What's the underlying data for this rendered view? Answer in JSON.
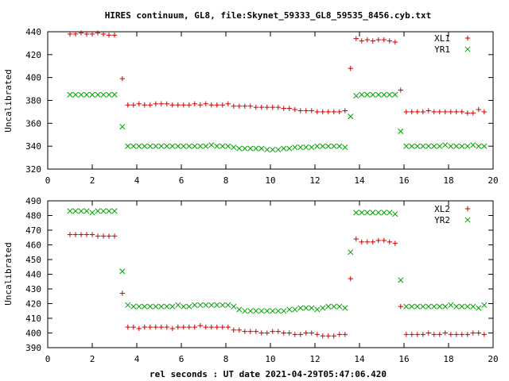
{
  "title": "HIRES continuum, GL8, file:Skynet_59333_GL8_59535_8456.cyb.txt",
  "xlabel": "rel seconds : UT date 2021-04-29T05:47:06.420",
  "colors": {
    "series_plus": "#cc0000",
    "series_x": "#00a000",
    "axis": "#000000"
  },
  "chart_data": [
    {
      "type": "scatter",
      "title": "HIRES continuum, GL8, file:Skynet_59333_GL8_59535_8456.cyb.txt",
      "xlabel": "",
      "ylabel": "Uncalibrated",
      "xlim": [
        0,
        20
      ],
      "ylim": [
        320,
        440
      ],
      "xticks": [
        0,
        2,
        4,
        6,
        8,
        10,
        12,
        14,
        16,
        18,
        20
      ],
      "yticks": [
        320,
        340,
        360,
        380,
        400,
        420,
        440
      ],
      "grid": false,
      "legend": "top-right",
      "series": [
        {
          "name": "XL1",
          "marker": "plus",
          "color": "#cc0000",
          "x": [
            1.0,
            1.25,
            1.5,
            1.75,
            2.0,
            2.25,
            2.5,
            2.75,
            3.0,
            3.35,
            3.6,
            3.85,
            4.1,
            4.35,
            4.6,
            4.85,
            5.1,
            5.35,
            5.6,
            5.85,
            6.1,
            6.35,
            6.6,
            6.85,
            7.1,
            7.35,
            7.6,
            7.85,
            8.1,
            8.35,
            8.6,
            8.85,
            9.1,
            9.35,
            9.6,
            9.85,
            10.1,
            10.35,
            10.6,
            10.85,
            11.1,
            11.35,
            11.6,
            11.85,
            12.1,
            12.35,
            12.6,
            12.85,
            13.1,
            13.35,
            13.6,
            13.85,
            14.1,
            14.35,
            14.6,
            14.85,
            15.1,
            15.35,
            15.6,
            15.85,
            16.1,
            16.35,
            16.6,
            16.85,
            17.1,
            17.35,
            17.6,
            17.85,
            18.1,
            18.35,
            18.6,
            18.85,
            19.1,
            19.35,
            19.6
          ],
          "y": [
            438,
            438,
            439,
            438,
            438,
            439,
            438,
            437,
            437,
            399,
            376,
            376,
            377,
            376,
            376,
            377,
            377,
            377,
            376,
            376,
            376,
            376,
            377,
            376,
            377,
            376,
            376,
            376,
            377,
            375,
            375,
            375,
            375,
            374,
            374,
            374,
            374,
            374,
            373,
            373,
            372,
            371,
            371,
            371,
            370,
            370,
            370,
            370,
            370,
            371,
            408,
            434,
            432,
            433,
            432,
            433,
            433,
            432,
            431,
            389,
            370,
            370,
            370,
            370,
            371,
            370,
            370,
            370,
            370,
            370,
            370,
            369,
            369,
            372,
            370
          ],
          "_note": ""
        },
        {
          "name": "YR1",
          "marker": "x",
          "color": "#00a000",
          "x": [
            1.0,
            1.25,
            1.5,
            1.75,
            2.0,
            2.25,
            2.5,
            2.75,
            3.0,
            3.35,
            3.6,
            3.85,
            4.1,
            4.35,
            4.6,
            4.85,
            5.1,
            5.35,
            5.6,
            5.85,
            6.1,
            6.35,
            6.6,
            6.85,
            7.1,
            7.35,
            7.6,
            7.85,
            8.1,
            8.35,
            8.6,
            8.85,
            9.1,
            9.35,
            9.6,
            9.85,
            10.1,
            10.35,
            10.6,
            10.85,
            11.1,
            11.35,
            11.6,
            11.85,
            12.1,
            12.35,
            12.6,
            12.85,
            13.1,
            13.35,
            13.6,
            13.85,
            14.1,
            14.35,
            14.6,
            14.85,
            15.1,
            15.35,
            15.6,
            15.85,
            16.1,
            16.35,
            16.6,
            16.85,
            17.1,
            17.35,
            17.6,
            17.85,
            18.1,
            18.35,
            18.6,
            18.85,
            19.1,
            19.35,
            19.6
          ],
          "y": [
            385,
            385,
            385,
            385,
            385,
            385,
            385,
            385,
            385,
            357,
            340,
            340,
            340,
            340,
            340,
            340,
            340,
            340,
            340,
            340,
            340,
            340,
            340,
            340,
            340,
            341,
            340,
            340,
            340,
            339,
            338,
            338,
            338,
            338,
            338,
            337,
            337,
            337,
            338,
            338,
            339,
            339,
            339,
            339,
            340,
            340,
            340,
            340,
            340,
            339,
            366,
            384,
            385,
            385,
            385,
            385,
            385,
            385,
            385,
            353,
            340,
            340,
            340,
            340,
            340,
            340,
            340,
            341,
            340,
            340,
            340,
            340,
            341,
            340,
            340
          ]
        }
      ]
    },
    {
      "type": "scatter",
      "title": "",
      "xlabel": "rel seconds : UT date 2021-04-29T05:47:06.420",
      "ylabel": "Uncalibrated",
      "xlim": [
        0,
        20
      ],
      "ylim": [
        390,
        490
      ],
      "xticks": [
        0,
        2,
        4,
        6,
        8,
        10,
        12,
        14,
        16,
        18,
        20
      ],
      "yticks": [
        390,
        400,
        410,
        420,
        430,
        440,
        450,
        460,
        470,
        480,
        490
      ],
      "grid": false,
      "legend": "top-right",
      "series": [
        {
          "name": "XL2",
          "marker": "plus",
          "color": "#cc0000",
          "x": [
            1.0,
            1.25,
            1.5,
            1.75,
            2.0,
            2.25,
            2.5,
            2.75,
            3.0,
            3.35,
            3.6,
            3.85,
            4.1,
            4.35,
            4.6,
            4.85,
            5.1,
            5.35,
            5.6,
            5.85,
            6.1,
            6.35,
            6.6,
            6.85,
            7.1,
            7.35,
            7.6,
            7.85,
            8.1,
            8.35,
            8.6,
            8.85,
            9.1,
            9.35,
            9.6,
            9.85,
            10.1,
            10.35,
            10.6,
            10.85,
            11.1,
            11.35,
            11.6,
            11.85,
            12.1,
            12.35,
            12.6,
            12.85,
            13.1,
            13.35,
            13.6,
            13.85,
            14.1,
            14.35,
            14.6,
            14.85,
            15.1,
            15.35,
            15.6,
            15.85,
            16.1,
            16.35,
            16.6,
            16.85,
            17.1,
            17.35,
            17.6,
            17.85,
            18.1,
            18.35,
            18.6,
            18.85,
            19.1,
            19.35,
            19.6
          ],
          "y": [
            467,
            467,
            467,
            467,
            467,
            466,
            466,
            466,
            466,
            427,
            404,
            404,
            403,
            404,
            404,
            404,
            404,
            404,
            403,
            404,
            404,
            404,
            404,
            405,
            404,
            404,
            404,
            404,
            404,
            402,
            402,
            401,
            401,
            401,
            400,
            400,
            401,
            401,
            400,
            400,
            399,
            399,
            400,
            400,
            399,
            398,
            398,
            398,
            399,
            399,
            437,
            464,
            462,
            462,
            462,
            463,
            463,
            462,
            461,
            418,
            399,
            399,
            399,
            399,
            400,
            399,
            399,
            400,
            399,
            399,
            399,
            399,
            400,
            400,
            399
          ]
        },
        {
          "name": "YR2",
          "marker": "x",
          "color": "#00a000",
          "x": [
            1.0,
            1.25,
            1.5,
            1.75,
            2.0,
            2.25,
            2.5,
            2.75,
            3.0,
            3.35,
            3.6,
            3.85,
            4.1,
            4.35,
            4.6,
            4.85,
            5.1,
            5.35,
            5.6,
            5.85,
            6.1,
            6.35,
            6.6,
            6.85,
            7.1,
            7.35,
            7.6,
            7.85,
            8.1,
            8.35,
            8.6,
            8.85,
            9.1,
            9.35,
            9.6,
            9.85,
            10.1,
            10.35,
            10.6,
            10.85,
            11.1,
            11.35,
            11.6,
            11.85,
            12.1,
            12.35,
            12.6,
            12.85,
            13.1,
            13.35,
            13.6,
            13.85,
            14.1,
            14.35,
            14.6,
            14.85,
            15.1,
            15.35,
            15.6,
            15.85,
            16.1,
            16.35,
            16.6,
            16.85,
            17.1,
            17.35,
            17.6,
            17.85,
            18.1,
            18.35,
            18.6,
            18.85,
            19.1,
            19.35,
            19.6
          ],
          "y": [
            483,
            483,
            483,
            483,
            482,
            483,
            483,
            483,
            483,
            442,
            419,
            418,
            418,
            418,
            418,
            418,
            418,
            418,
            418,
            419,
            418,
            418,
            419,
            419,
            419,
            419,
            419,
            419,
            419,
            418,
            416,
            415,
            415,
            415,
            415,
            415,
            415,
            415,
            415,
            416,
            416,
            417,
            417,
            417,
            416,
            417,
            418,
            418,
            418,
            417,
            455,
            482,
            482,
            482,
            482,
            482,
            482,
            482,
            481,
            436,
            418,
            418,
            418,
            418,
            418,
            418,
            418,
            418,
            419,
            418,
            418,
            418,
            418,
            417,
            419
          ]
        }
      ]
    }
  ]
}
